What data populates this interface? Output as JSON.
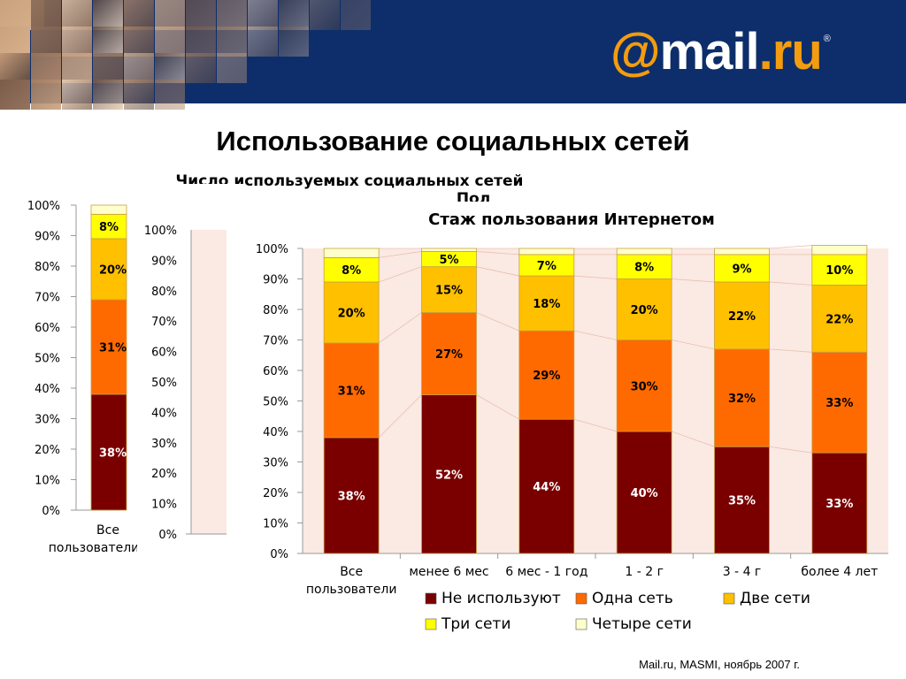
{
  "header": {
    "logo_at": "@",
    "logo_mail": "mail",
    "logo_dot": ".",
    "logo_ru": "ru",
    "logo_reg": "®"
  },
  "title": "Использование социальных сетей",
  "footer": "Mail.ru, MASMI, ноябрь 2007 г.",
  "colors": {
    "header_bg": "#0d2e6b",
    "plot_bg": "#fbe9e3",
    "not_use": "#7a0000",
    "one": "#ff6a00",
    "two": "#ffc000",
    "three": "#ffff00",
    "four": "#ffffcc"
  },
  "back_chart_1": {
    "title": "Число используемых социальных сетей",
    "y_ticks": [
      "100%",
      "90%",
      "80%",
      "70%",
      "60%",
      "50%",
      "40%",
      "30%",
      "20%",
      "10%",
      "0%"
    ],
    "category": "Все пользователи",
    "labels": [
      "38%",
      "31%",
      "20%",
      "8%"
    ]
  },
  "back_chart_2": {
    "title": "Пол",
    "y_ticks": [
      "100%",
      "90%",
      "80%",
      "70%",
      "60%",
      "50%",
      "40%",
      "30%",
      "20%",
      "10%",
      "0%"
    ]
  },
  "chart_data": {
    "type": "bar",
    "stacked": true,
    "title": "Стаж пользования Интернетом",
    "categories": [
      "Все пользователи",
      "менее 6 мес",
      "6 мес - 1 год",
      "1 - 2 г",
      "3 - 4 г",
      "более 4 лет"
    ],
    "ylim": [
      0,
      100
    ],
    "y_ticks": [
      "100%",
      "90%",
      "80%",
      "70%",
      "60%",
      "50%",
      "40%",
      "30%",
      "20%",
      "10%",
      "0%"
    ],
    "legend_position": "bottom",
    "series": [
      {
        "name": "Не используют",
        "color": "#7a0000",
        "values": [
          38,
          52,
          44,
          40,
          35,
          33
        ],
        "labels": [
          "38%",
          "52%",
          "44%",
          "40%",
          "35%",
          "33%"
        ]
      },
      {
        "name": "Одна сеть",
        "color": "#ff6a00",
        "values": [
          31,
          27,
          29,
          30,
          32,
          33
        ],
        "labels": [
          "31%",
          "27%",
          "29%",
          "30%",
          "32%",
          "33%"
        ]
      },
      {
        "name": "Две сети",
        "color": "#ffc000",
        "values": [
          20,
          15,
          18,
          20,
          22,
          22
        ],
        "labels": [
          "20%",
          "15%",
          "18%",
          "20%",
          "22%",
          "22%"
        ]
      },
      {
        "name": "Три сети",
        "color": "#ffff00",
        "values": [
          8,
          5,
          7,
          8,
          9,
          10
        ],
        "labels": [
          "8%",
          "5%",
          "7%",
          "8%",
          "9%",
          "10%"
        ]
      },
      {
        "name": "Четыре сети",
        "color": "#ffffcc",
        "values": [
          3,
          1,
          2,
          2,
          2,
          3
        ],
        "labels": [
          "",
          "",
          "",
          "",
          "",
          ""
        ]
      }
    ]
  }
}
